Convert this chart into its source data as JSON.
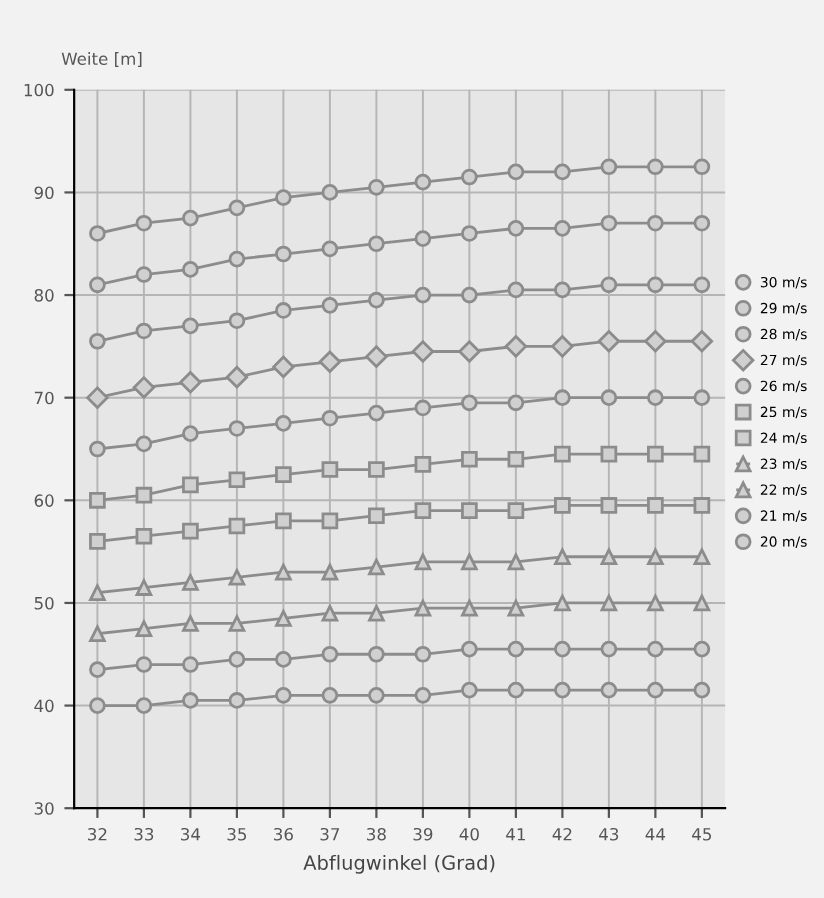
{
  "chart_data": {
    "type": "line",
    "ylabel": "Weite [m]",
    "xlabel": "Abflugwinkel (Grad)",
    "x": [
      32,
      33,
      34,
      35,
      36,
      37,
      38,
      39,
      40,
      41,
      42,
      43,
      44,
      45
    ],
    "xlim": [
      31.5,
      45.5
    ],
    "xticks": [
      32,
      33,
      34,
      35,
      36,
      37,
      38,
      39,
      40,
      41,
      42,
      43,
      44,
      45
    ],
    "ylim": [
      30,
      100
    ],
    "yticks": [
      30,
      40,
      50,
      60,
      70,
      80,
      90,
      100
    ],
    "grid": true,
    "legend": "right",
    "line_style": "solid",
    "series": [
      {
        "name": "30 m/s",
        "color": "#8c8c8c",
        "marker": "circle",
        "values": [
          86,
          87,
          87.5,
          88.5,
          89.5,
          90,
          90.5,
          91,
          91.5,
          92,
          92,
          92.5,
          92.5,
          92.5
        ]
      },
      {
        "name": "29 m/s",
        "color": "#8c8c8c",
        "marker": "circle",
        "values": [
          81,
          82,
          82.5,
          83.5,
          84,
          84.5,
          85,
          85.5,
          86,
          86.5,
          86.5,
          87,
          87,
          87
        ]
      },
      {
        "name": "28 m/s",
        "color": "#8c8c8c",
        "marker": "circle",
        "values": [
          75.5,
          76.5,
          77,
          77.5,
          78.5,
          79,
          79.5,
          80,
          80,
          80.5,
          80.5,
          81,
          81,
          81
        ]
      },
      {
        "name": "27 m/s",
        "color": "#8c8c8c",
        "marker": "diamond",
        "values": [
          70,
          71,
          71.5,
          72,
          73,
          73.5,
          74,
          74.5,
          74.5,
          75,
          75,
          75.5,
          75.5,
          75.5
        ]
      },
      {
        "name": "26 m/s",
        "color": "#8c8c8c",
        "marker": "circle",
        "values": [
          65,
          65.5,
          66.5,
          67,
          67.5,
          68,
          68.5,
          69,
          69.5,
          69.5,
          70,
          70,
          70,
          70
        ]
      },
      {
        "name": "25 m/s",
        "color": "#8c8c8c",
        "marker": "square",
        "values": [
          60,
          60.5,
          61.5,
          62,
          62.5,
          63,
          63,
          63.5,
          64,
          64,
          64.5,
          64.5,
          64.5,
          64.5
        ]
      },
      {
        "name": "24 m/s",
        "color": "#8c8c8c",
        "marker": "square",
        "values": [
          56,
          56.5,
          57,
          57.5,
          58,
          58,
          58.5,
          59,
          59,
          59,
          59.5,
          59.5,
          59.5,
          59.5
        ]
      },
      {
        "name": "23 m/s",
        "color": "#8c8c8c",
        "marker": "triangle",
        "values": [
          51,
          51.5,
          52,
          52.5,
          53,
          53,
          53.5,
          54,
          54,
          54,
          54.5,
          54.5,
          54.5,
          54.5
        ]
      },
      {
        "name": "22 m/s",
        "color": "#8c8c8c",
        "marker": "triangle",
        "values": [
          47,
          47.5,
          48,
          48,
          48.5,
          49,
          49,
          49.5,
          49.5,
          49.5,
          50,
          50,
          50,
          50
        ]
      },
      {
        "name": "21 m/s",
        "color": "#8c8c8c",
        "marker": "circle",
        "values": [
          43.5,
          44,
          44,
          44.5,
          44.5,
          45,
          45,
          45,
          45.5,
          45.5,
          45.5,
          45.5,
          45.5,
          45.5
        ]
      },
      {
        "name": "20 m/s",
        "color": "#8c8c8c",
        "marker": "circle",
        "values": [
          40,
          40,
          40.5,
          40.5,
          41,
          41,
          41,
          41,
          41.5,
          41.5,
          41.5,
          41.5,
          41.5,
          41.5
        ]
      }
    ]
  }
}
